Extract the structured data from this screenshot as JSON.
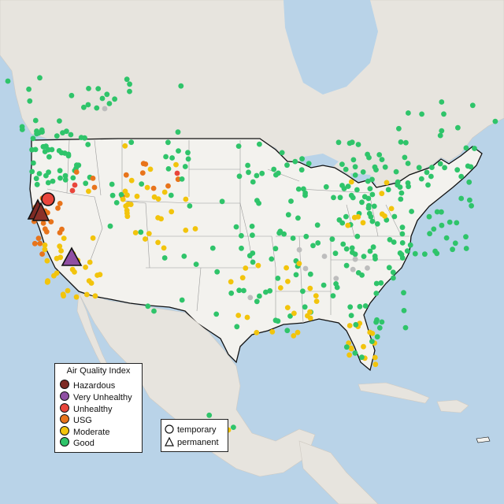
{
  "legend": {
    "title": "Air Quality Index",
    "items": [
      {
        "label": "Hazardous",
        "color": "#7e2a24"
      },
      {
        "label": "Very Unhealthy",
        "color": "#8f4fa3"
      },
      {
        "label": "Unhealthy",
        "color": "#e9453b"
      },
      {
        "label": "USG",
        "color": "#e8741b"
      },
      {
        "label": "Moderate",
        "color": "#f2c40c"
      },
      {
        "label": "Good",
        "color": "#2fc46a"
      }
    ]
  },
  "shape_legend": {
    "items": [
      {
        "label": "temporary",
        "shape": "circle-icon"
      },
      {
        "label": "permanent",
        "shape": "triangle-icon"
      }
    ]
  },
  "colors": {
    "water": "#b9d3e8",
    "land": "#e9e6e1",
    "usa_land": "#f3f2ee"
  }
}
